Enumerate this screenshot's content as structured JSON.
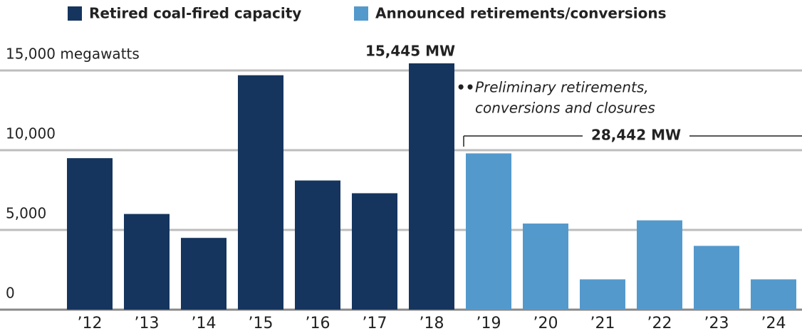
{
  "chart_data": {
    "type": "bar",
    "categories": [
      "’12",
      "’13",
      "’14",
      "’15",
      "’16",
      "’17",
      "’18",
      "’19",
      "’20",
      "’21",
      "’22",
      "’23",
      "’24"
    ],
    "series": [
      {
        "name": "Retired coal-fired capacity",
        "color": "#15355e",
        "values": [
          9500,
          6000,
          4500,
          14700,
          8100,
          7300,
          15445,
          null,
          null,
          null,
          null,
          null,
          null
        ],
        "value_labels": [
          null,
          null,
          null,
          null,
          null,
          null,
          "15,445 MW",
          null,
          null,
          null,
          null,
          null,
          null
        ]
      },
      {
        "name": "Announced retirements/conversions",
        "color": "#5499cc",
        "values": [
          null,
          null,
          null,
          null,
          null,
          null,
          null,
          9800,
          5400,
          1900,
          5600,
          4000,
          1900
        ]
      }
    ],
    "ylim": [
      0,
      15445
    ],
    "yticks": [
      0,
      {
        "value": 5000,
        "label": "5,000"
      },
      {
        "value": 10000,
        "label": "10,000"
      },
      {
        "value": 15000,
        "label": "15,000 megawatts"
      }
    ],
    "grid": true,
    "annotations": [
      "Preliminary retirements,",
      "conversions and closures",
      "28,442 MW"
    ]
  }
}
